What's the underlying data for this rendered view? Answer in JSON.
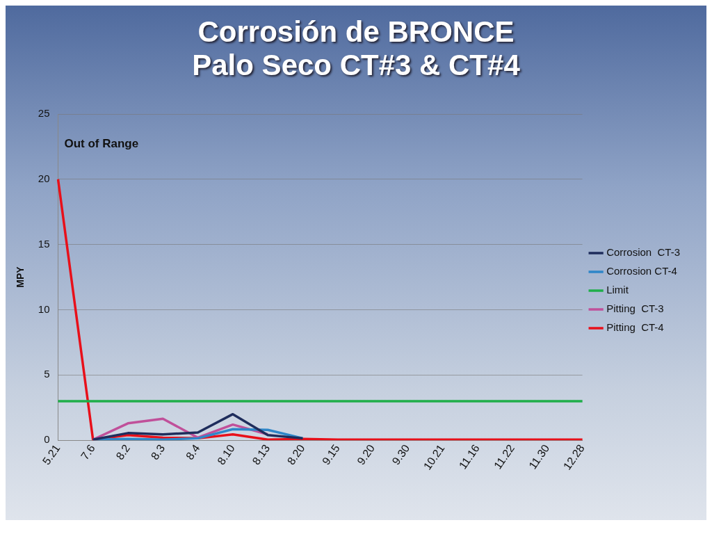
{
  "chart_data": {
    "type": "line",
    "title": "Corrosión de BRONCE\nPalo Seco CT#3 & CT#4",
    "ylabel": "MPY",
    "categories": [
      "5.21",
      "7.6",
      "8.2",
      "8.3",
      "8.4",
      "8.10",
      "8.13",
      "8.20",
      "9.15",
      "9.20",
      "9.30",
      "10.21",
      "11.16",
      "11.22",
      "11.30",
      "12.28"
    ],
    "series": [
      {
        "name": "Corrosion  CT-3",
        "color": "#1f2d5c",
        "values": [
          null,
          0.05,
          0.55,
          0.45,
          0.6,
          2.0,
          0.4,
          0.15,
          null,
          null,
          null,
          null,
          null,
          null,
          null,
          null
        ]
      },
      {
        "name": "Corrosion CT-4",
        "color": "#2e86c8",
        "values": [
          null,
          0.05,
          0.1,
          0.05,
          0.15,
          0.85,
          0.8,
          0.15,
          null,
          null,
          null,
          null,
          null,
          null,
          null,
          null
        ]
      },
      {
        "name": "Limit",
        "color": "#1fae4a",
        "values": [
          3,
          3,
          3,
          3,
          3,
          3,
          3,
          3,
          3,
          3,
          3,
          3,
          3,
          3,
          3,
          3
        ]
      },
      {
        "name": "Pitting  CT-3",
        "color": "#c0509a",
        "values": [
          null,
          0.05,
          1.3,
          1.65,
          0.2,
          1.2,
          0.45,
          null,
          null,
          null,
          null,
          null,
          null,
          null,
          null,
          null
        ]
      },
      {
        "name": "Pitting  CT-4",
        "color": "#e8101a",
        "values": [
          20,
          0.05,
          0.4,
          0.2,
          0.15,
          0.45,
          0.05,
          0.1,
          0.05,
          0.05,
          0.05,
          0.05,
          0.05,
          0.05,
          0.05,
          0.05
        ]
      }
    ],
    "ylim": [
      0,
      25
    ],
    "yticks": [
      0,
      5,
      10,
      15,
      20,
      25
    ],
    "grid": "y",
    "legend": "right",
    "marker": "none",
    "line_style": "solid",
    "annotations": [
      "Out of Range"
    ]
  }
}
